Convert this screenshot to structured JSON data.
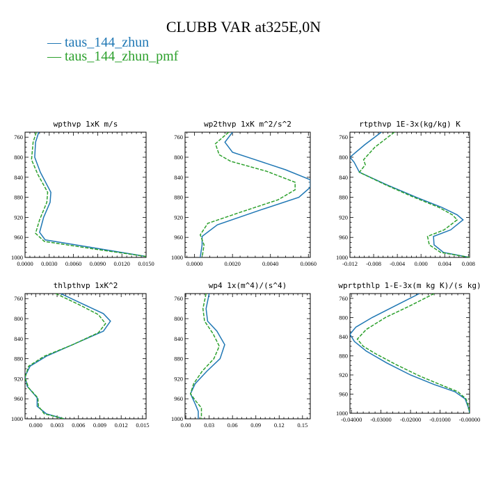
{
  "title": "CLUBB VAR at325E,0N",
  "legend": [
    {
      "label": "taus_144_zhun",
      "color": "#1f77b4"
    },
    {
      "label": "taus_144_zhun_pmf",
      "color": "#2ca02c"
    }
  ],
  "chart_data": [
    {
      "type": "line",
      "title": "wpthvp  1xK m/s",
      "xlim": [
        0,
        0.015
      ],
      "ylim": [
        1000,
        750
      ],
      "xticks": [
        "0.0000",
        "0.0030",
        "0.0060",
        "0.0090",
        "0.0120",
        "0.0150"
      ],
      "xtick_values": [
        0,
        0.003,
        0.006,
        0.009,
        0.012,
        0.015
      ],
      "yticks": [
        760,
        800,
        840,
        880,
        920,
        960,
        1000
      ],
      "series": [
        {
          "name": "taus_144_zhun",
          "points": [
            [
              0.0017,
              750
            ],
            [
              0.0013,
              770
            ],
            [
              0.0012,
              800
            ],
            [
              0.0019,
              830
            ],
            [
              0.0032,
              870
            ],
            [
              0.0031,
              890
            ],
            [
              0.0023,
              920
            ],
            [
              0.0018,
              950
            ],
            [
              0.0025,
              965
            ],
            [
              0.0082,
              980
            ],
            [
              0.015,
              998
            ]
          ]
        },
        {
          "name": "taus_144_zhun_pmf",
          "points": [
            [
              0.0014,
              750
            ],
            [
              0.001,
              770
            ],
            [
              0.0008,
              805
            ],
            [
              0.0016,
              835
            ],
            [
              0.0028,
              870
            ],
            [
              0.0027,
              890
            ],
            [
              0.0018,
              925
            ],
            [
              0.0013,
              952
            ],
            [
              0.0024,
              968
            ],
            [
              0.0085,
              983
            ],
            [
              0.015,
              998
            ]
          ]
        }
      ]
    },
    {
      "type": "line",
      "title": "wp2thvp  1xK m^2/s^2",
      "xlim": [
        -0.0005,
        0.0061
      ],
      "ylim": [
        1000,
        750
      ],
      "xticks": [
        "0.0000",
        "0.0020",
        "0.0040",
        "0.0060"
      ],
      "xtick_values": [
        0,
        0.002,
        0.004,
        0.006
      ],
      "yticks": [
        760,
        800,
        840,
        880,
        920,
        960,
        1000
      ],
      "series": [
        {
          "name": "taus_144_zhun",
          "points": [
            [
              0.002,
              750
            ],
            [
              0.0016,
              770
            ],
            [
              0.002,
              790
            ],
            [
              0.0032,
              805
            ],
            [
              0.0048,
              825
            ],
            [
              0.0061,
              845
            ],
            [
              0.0061,
              860
            ],
            [
              0.0055,
              880
            ],
            [
              0.0035,
              905
            ],
            [
              0.0012,
              935
            ],
            [
              0.0004,
              958
            ],
            [
              0.0004,
              975
            ],
            [
              0.0003,
              1000
            ]
          ]
        },
        {
          "name": "taus_144_zhun_pmf",
          "points": [
            [
              0.0018,
              750
            ],
            [
              0.0011,
              773
            ],
            [
              0.0013,
              795
            ],
            [
              0.0019,
              808
            ],
            [
              0.0038,
              828
            ],
            [
              0.0053,
              850
            ],
            [
              0.0053,
              865
            ],
            [
              0.0044,
              885
            ],
            [
              0.0024,
              910
            ],
            [
              0.0007,
              932
            ],
            [
              0.0003,
              955
            ],
            [
              0.0005,
              975
            ],
            [
              0.0004,
              1000
            ]
          ]
        }
      ]
    },
    {
      "type": "line",
      "title": "rtpthvp  1E-3x(kg/kg) K",
      "xlim": [
        -0.012,
        0.0082
      ],
      "ylim": [
        1000,
        750
      ],
      "xticks": [
        "-0.012",
        "-0.008",
        "-0.004",
        "0.000",
        "0.004",
        "0.008"
      ],
      "xtick_values": [
        -0.012,
        -0.008,
        -0.004,
        0,
        0.004,
        0.008
      ],
      "yticks": [
        760,
        800,
        840,
        880,
        920,
        960,
        1000
      ],
      "series": [
        {
          "name": "taus_144_zhun",
          "points": [
            [
              -0.0067,
              750
            ],
            [
              -0.0095,
              775
            ],
            [
              -0.012,
              800
            ],
            [
              -0.0113,
              810
            ],
            [
              -0.0104,
              830
            ],
            [
              -0.0058,
              855
            ],
            [
              -0.0008,
              880
            ],
            [
              0.0035,
              900
            ],
            [
              0.0061,
              915
            ],
            [
              0.0071,
              925
            ],
            [
              0.005,
              945
            ],
            [
              0.0021,
              958
            ],
            [
              0.0022,
              975
            ],
            [
              0.0038,
              990
            ],
            [
              0.0082,
              1000
            ]
          ]
        },
        {
          "name": "taus_144_zhun_pmf",
          "points": [
            [
              -0.0045,
              750
            ],
            [
              -0.0078,
              780
            ],
            [
              -0.0097,
              805
            ],
            [
              -0.0094,
              815
            ],
            [
              -0.0104,
              830
            ],
            [
              -0.006,
              855
            ],
            [
              -0.0012,
              880
            ],
            [
              0.003,
              900
            ],
            [
              0.0053,
              915
            ],
            [
              0.0061,
              925
            ],
            [
              0.0039,
              945
            ],
            [
              0.0011,
              958
            ],
            [
              0.0014,
              975
            ],
            [
              0.0033,
              990
            ],
            [
              0.0082,
              1000
            ]
          ]
        }
      ]
    },
    {
      "type": "line",
      "title": "thlpthvp  1xK^2",
      "xlim": [
        -0.0015,
        0.0155
      ],
      "ylim": [
        1000,
        750
      ],
      "xticks": [
        "0.000",
        "0.003",
        "0.006",
        "0.009",
        "0.012",
        "0.015"
      ],
      "xtick_values": [
        0,
        0.003,
        0.006,
        0.009,
        0.012,
        0.015
      ],
      "yticks": [
        760,
        800,
        840,
        880,
        920,
        960,
        1000
      ],
      "series": [
        {
          "name": "taus_144_zhun",
          "points": [
            [
              0.0035,
              750
            ],
            [
              0.0065,
              770
            ],
            [
              0.0095,
              790
            ],
            [
              0.0105,
              805
            ],
            [
              0.0095,
              825
            ],
            [
              0.0055,
              850
            ],
            [
              0.0015,
              875
            ],
            [
              -0.0008,
              895
            ],
            [
              -0.0015,
              915
            ],
            [
              -0.0012,
              935
            ],
            [
              0.0002,
              958
            ],
            [
              0.0002,
              975
            ],
            [
              0.0015,
              990
            ],
            [
              0.004,
              1000
            ]
          ]
        },
        {
          "name": "taus_144_zhun_pmf",
          "points": [
            [
              0.0028,
              750
            ],
            [
              0.0058,
              770
            ],
            [
              0.0088,
              792
            ],
            [
              0.0098,
              810
            ],
            [
              0.0088,
              828
            ],
            [
              0.0052,
              852
            ],
            [
              0.0012,
              875
            ],
            [
              -0.001,
              895
            ],
            [
              -0.0015,
              918
            ],
            [
              -0.001,
              938
            ],
            [
              0.0003,
              958
            ],
            [
              0.0004,
              975
            ],
            [
              0.0012,
              990
            ],
            [
              0.004,
              1000
            ]
          ]
        }
      ]
    },
    {
      "type": "line",
      "title": "wp4  1x(m^4)/(s^4)",
      "xlim": [
        -0.001,
        0.16
      ],
      "ylim": [
        1000,
        750
      ],
      "xticks": [
        "0.00",
        "0.03",
        "0.06",
        "0.09",
        "0.12",
        "0.15"
      ],
      "xtick_values": [
        0,
        0.03,
        0.06,
        0.09,
        0.12,
        0.15
      ],
      "yticks": [
        760,
        800,
        840,
        880,
        920,
        960,
        1000
      ],
      "series": [
        {
          "name": "taus_144_zhun",
          "points": [
            [
              0.03,
              750
            ],
            [
              0.026,
              780
            ],
            [
              0.028,
              805
            ],
            [
              0.04,
              825
            ],
            [
              0.05,
              852
            ],
            [
              0.044,
              880
            ],
            [
              0.027,
              905
            ],
            [
              0.012,
              930
            ],
            [
              0.006,
              950
            ],
            [
              0.012,
              970
            ],
            [
              0.016,
              985
            ],
            [
              0.016,
              1000
            ]
          ]
        },
        {
          "name": "taus_144_zhun_pmf",
          "points": [
            [
              0.026,
              750
            ],
            [
              0.022,
              780
            ],
            [
              0.024,
              805
            ],
            [
              0.035,
              830
            ],
            [
              0.043,
              855
            ],
            [
              0.036,
              880
            ],
            [
              0.021,
              905
            ],
            [
              0.01,
              930
            ],
            [
              0.006,
              950
            ],
            [
              0.013,
              965
            ],
            [
              0.02,
              978
            ],
            [
              0.02,
              1000
            ]
          ]
        }
      ]
    },
    {
      "type": "line",
      "title": "wprtpthlp  1-E-3x(m kg K)/(s kg)",
      "xlim": [
        -0.0405,
        0
      ],
      "ylim": [
        1000,
        750
      ],
      "xticks": [
        "-0.04000",
        "-0.03000",
        "-0.02000",
        "-0.01000",
        "-0.00000"
      ],
      "xtick_values": [
        -0.04,
        -0.03,
        -0.02,
        -0.01,
        0
      ],
      "yticks": [
        760,
        800,
        840,
        880,
        920,
        960,
        1000
      ],
      "series": [
        {
          "name": "taus_144_zhun",
          "points": [
            [
              -0.017,
              750
            ],
            [
              -0.025,
              775
            ],
            [
              -0.033,
              800
            ],
            [
              -0.0385,
              820
            ],
            [
              -0.0405,
              835
            ],
            [
              -0.039,
              850
            ],
            [
              -0.035,
              870
            ],
            [
              -0.028,
              895
            ],
            [
              -0.02,
              920
            ],
            [
              -0.012,
              940
            ],
            [
              -0.005,
              955
            ],
            [
              -0.0015,
              970
            ],
            [
              -0.0003,
              990
            ],
            [
              0,
              1000
            ]
          ]
        },
        {
          "name": "taus_144_zhun_pmf",
          "points": [
            [
              -0.012,
              750
            ],
            [
              -0.02,
              775
            ],
            [
              -0.0285,
              800
            ],
            [
              -0.035,
              825
            ],
            [
              -0.038,
              845
            ],
            [
              -0.036,
              860
            ],
            [
              -0.032,
              875
            ],
            [
              -0.025,
              898
            ],
            [
              -0.017,
              922
            ],
            [
              -0.01,
              940
            ],
            [
              -0.004,
              955
            ],
            [
              -0.0012,
              970
            ],
            [
              -0.0002,
              990
            ],
            [
              0,
              1000
            ]
          ]
        }
      ]
    }
  ]
}
